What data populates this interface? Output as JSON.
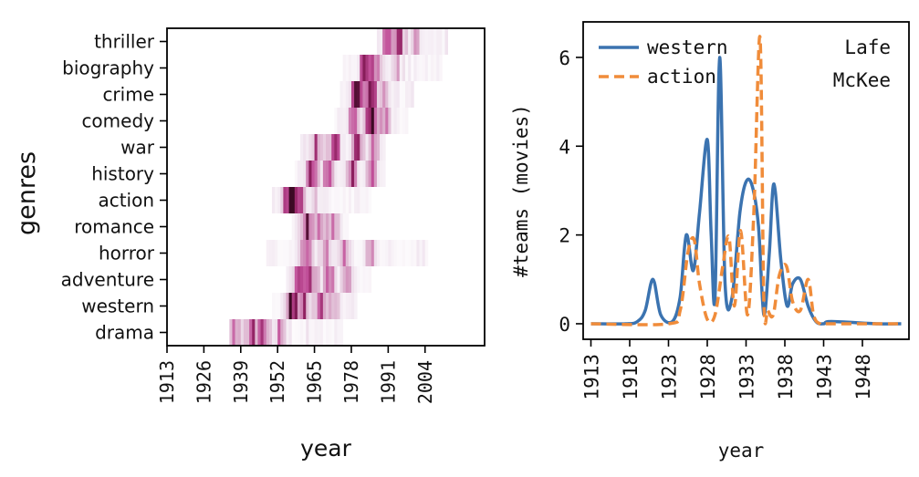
{
  "chart_data": [
    {
      "type": "heatmap",
      "xlabel": "year",
      "ylabel": "genres",
      "x_ticks": [
        "1913",
        "1926",
        "1939",
        "1952",
        "1965",
        "1978",
        "1991",
        "2004"
      ],
      "xlim": [
        1913,
        2025
      ],
      "genres": [
        "thriller",
        "biography",
        "crime",
        "comedy",
        "war",
        "history",
        "action",
        "romance",
        "horror",
        "adventure",
        "western",
        "drama"
      ],
      "colormap": [
        "#ffffff",
        "#f1e6f0",
        "#d9a8c8",
        "#c2509a",
        "#8e1f5f",
        "#3d0a24"
      ],
      "rows": [
        {
          "genre": "thriller",
          "extent": [
            1987,
            2012
          ],
          "hotspots": [
            [
              1991,
              0.9
            ],
            [
              1995,
              0.65
            ],
            [
              2001,
              0.4
            ]
          ]
        },
        {
          "genre": "biography",
          "extent": [
            1975,
            2010
          ],
          "hotspots": [
            [
              1983,
              0.85
            ],
            [
              1987,
              0.55
            ],
            [
              1994,
              0.25
            ]
          ]
        },
        {
          "genre": "crime",
          "extent": [
            1974,
            2000
          ],
          "hotspots": [
            [
              1980,
              0.8
            ],
            [
              1985,
              0.95
            ],
            [
              1990,
              0.4
            ]
          ]
        },
        {
          "genre": "comedy",
          "extent": [
            1972,
            1998
          ],
          "hotspots": [
            [
              1979,
              0.6
            ],
            [
              1985,
              1.0
            ],
            [
              1990,
              0.5
            ]
          ]
        },
        {
          "genre": "war",
          "extent": [
            1960,
            1990
          ],
          "hotspots": [
            [
              1966,
              0.6
            ],
            [
              1972,
              0.75
            ],
            [
              1980,
              0.7
            ],
            [
              1986,
              0.5
            ]
          ]
        },
        {
          "genre": "history",
          "extent": [
            1958,
            1990
          ],
          "hotspots": [
            [
              1964,
              0.7
            ],
            [
              1970,
              0.65
            ],
            [
              1978,
              0.7
            ],
            [
              1985,
              0.55
            ]
          ]
        },
        {
          "genre": "action",
          "extent": [
            1950,
            1985
          ],
          "hotspots": [
            [
              1956,
              1.0
            ],
            [
              1959,
              0.95
            ],
            [
              1965,
              0.2
            ]
          ]
        },
        {
          "genre": "romance",
          "extent": [
            1957,
            1977
          ],
          "hotspots": [
            [
              1962,
              0.8
            ],
            [
              1967,
              0.6
            ],
            [
              1972,
              0.5
            ]
          ]
        },
        {
          "genre": "horror",
          "extent": [
            1948,
            2005
          ],
          "hotspots": [
            [
              1962,
              0.55
            ],
            [
              1969,
              0.5
            ],
            [
              1976,
              0.45
            ],
            [
              1985,
              0.3
            ]
          ]
        },
        {
          "genre": "adventure",
          "extent": [
            1955,
            1985
          ],
          "hotspots": [
            [
              1960,
              0.95
            ],
            [
              1964,
              0.7
            ],
            [
              1970,
              0.6
            ],
            [
              1976,
              0.45
            ]
          ]
        },
        {
          "genre": "western",
          "extent": [
            1950,
            1980
          ],
          "hotspots": [
            [
              1957,
              1.0
            ],
            [
              1961,
              0.7
            ],
            [
              1967,
              0.55
            ],
            [
              1972,
              0.35
            ]
          ]
        },
        {
          "genre": "drama",
          "extent": [
            1935,
            1975
          ],
          "hotspots": [
            [
              1937,
              0.5
            ],
            [
              1943,
              0.8
            ],
            [
              1947,
              0.6
            ],
            [
              1953,
              0.45
            ]
          ]
        }
      ]
    },
    {
      "type": "line",
      "xlabel": "year",
      "ylabel": "#teams (movies)",
      "xlim": [
        1912,
        1954
      ],
      "ylim": [
        -0.35,
        6.8
      ],
      "x_ticks": [
        1913,
        1918,
        1923,
        1928,
        1933,
        1938,
        1943,
        1948
      ],
      "y_ticks": [
        0,
        2,
        4,
        6
      ],
      "annotation": "Lafe\nMcKee",
      "legend_position": "top-left",
      "series": [
        {
          "name": "western",
          "color": "#3b73b0",
          "style": "solid",
          "x": [
            1913,
            1917.5,
            1919.0,
            1920.0,
            1921.0,
            1922.0,
            1923.5,
            1924.5,
            1925.3,
            1926.2,
            1927.0,
            1928.0,
            1928.5,
            1929.0,
            1929.6,
            1930.3,
            1931.2,
            1932.2,
            1933.0,
            1933.8,
            1934.6,
            1935.3,
            1936.0,
            1936.6,
            1937.5,
            1938.3,
            1939.0,
            1940.0,
            1941.0,
            1942.0,
            1943.0,
            1944.0,
            1950,
            1953
          ],
          "y": [
            0,
            0,
            0.05,
            0.3,
            1.0,
            0.2,
            0.05,
            0.6,
            2.0,
            1.2,
            2.5,
            4.15,
            2.0,
            0.6,
            6.0,
            0.9,
            0.6,
            2.5,
            3.2,
            3.1,
            2.2,
            0.2,
            1.6,
            3.15,
            1.4,
            0.4,
            0.9,
            1.0,
            0.4,
            0.05,
            0.0,
            0.05,
            0,
            0
          ]
        },
        {
          "name": "action",
          "color": "#f08c3a",
          "style": "dashed",
          "x": [
            1913,
            1923.0,
            1924.5,
            1925.5,
            1926.3,
            1927.0,
            1928.0,
            1929.0,
            1930.0,
            1930.8,
            1931.5,
            1932.3,
            1933.2,
            1934.0,
            1934.8,
            1935.3,
            1935.8,
            1936.5,
            1937.3,
            1938.2,
            1939.0,
            1940.0,
            1941.0,
            1941.7,
            1942.5,
            1943.5,
            1950,
            1953
          ],
          "y": [
            0,
            0,
            0.3,
            1.6,
            1.9,
            0.9,
            0.1,
            0.2,
            1.3,
            1.95,
            0.4,
            2.1,
            0.2,
            2.5,
            6.45,
            0.5,
            0.3,
            0.2,
            1.1,
            1.3,
            0.5,
            0.3,
            1.0,
            0.2,
            0.0,
            0.0,
            0,
            0
          ]
        }
      ]
    }
  ]
}
